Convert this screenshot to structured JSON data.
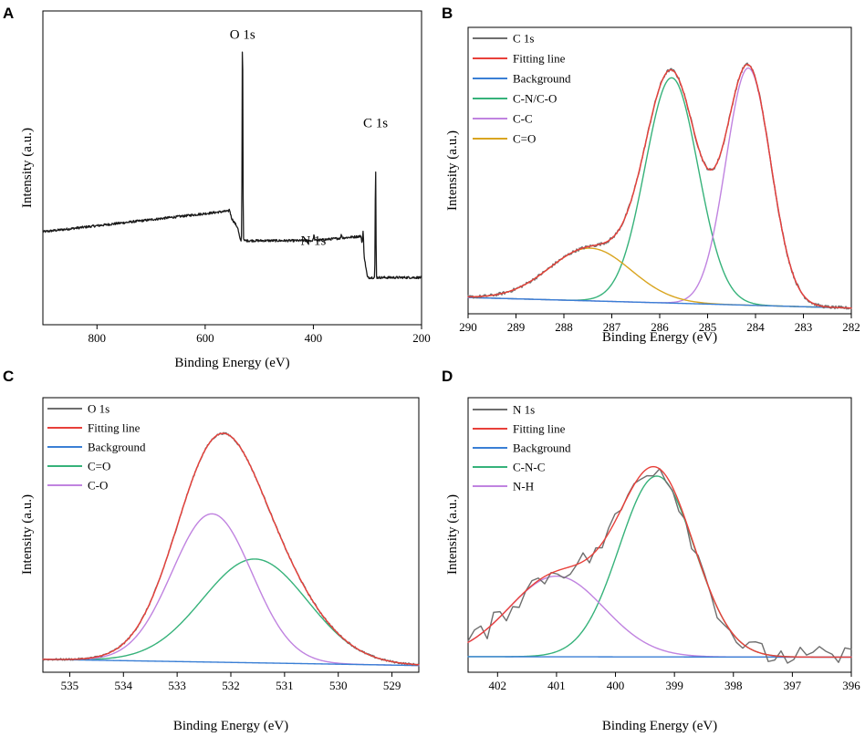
{
  "chart_data": [
    {
      "id": "A",
      "type": "line",
      "panel_label": "A",
      "xlabel": "Binding Energy (eV)",
      "ylabel": "Intensity (a.u.)",
      "xlim": [
        900,
        200
      ],
      "ylim": [
        0,
        1
      ],
      "xticks": [
        800,
        600,
        400,
        200
      ],
      "y_ticks_shown": false,
      "annotations": [
        {
          "text": "O 1s",
          "x": 531,
          "y": 0.97
        },
        {
          "text": "N 1s",
          "x": 400,
          "y": 0.27
        },
        {
          "text": "C 1s",
          "x": 285,
          "y": 0.67
        }
      ],
      "series": [
        {
          "name": "Survey",
          "color": "#1a1a1a",
          "baseline": [
            [
              900,
              0.315
            ],
            [
              560,
              0.385
            ],
            [
              540,
              0.33
            ],
            [
              535,
              0.285
            ],
            [
              400,
              0.285
            ],
            [
              312,
              0.3
            ],
            [
              300,
              0.16
            ],
            [
              200,
              0.16
            ]
          ],
          "noise": 0.004,
          "peaks": [
            {
              "center": 531,
              "height": 0.72,
              "width": 1.6
            },
            {
              "center": 555,
              "height": 0.018,
              "width": 4
            },
            {
              "center": 399,
              "height": 0.018,
              "width": 2
            },
            {
              "center": 348,
              "height": 0.012,
              "width": 2
            },
            {
              "center": 308,
              "height": 0.06,
              "width": 2
            },
            {
              "center": 285,
              "height": 0.38,
              "width": 1.5
            }
          ]
        }
      ]
    },
    {
      "id": "B",
      "type": "line",
      "panel_label": "B",
      "xlabel": "Binding Energy (eV)",
      "ylabel": "Intensity (a.u.)",
      "xlim": [
        290,
        282
      ],
      "ylim": [
        0,
        1
      ],
      "xticks": [
        290,
        289,
        288,
        287,
        286,
        285,
        284,
        283,
        282
      ],
      "y_ticks_shown": false,
      "legend_position": "top-left",
      "series": [
        {
          "name": "C 1s",
          "color": "#6e6e6e",
          "kind": "sum",
          "noise": 0.006
        },
        {
          "name": "Fitting line",
          "color": "#e8403a",
          "kind": "sum"
        },
        {
          "name": "Background",
          "color": "#3a7fd5",
          "kind": "background",
          "background": [
            0.04,
            0.0
          ]
        },
        {
          "name": "C-N/C-O",
          "color": "#36b27a",
          "kind": "gauss",
          "center": 285.75,
          "height": 0.855,
          "fwhm": 1.3
        },
        {
          "name": "C-C",
          "color": "#c083e0",
          "kind": "gauss",
          "center": 284.15,
          "height": 0.9,
          "fwhm": 1.1
        },
        {
          "name": "C=O",
          "color": "#d9a520",
          "kind": "gauss",
          "center": 287.45,
          "height": 0.2,
          "fwhm": 2.0
        }
      ]
    },
    {
      "id": "C",
      "type": "line",
      "panel_label": "C",
      "xlabel": "Binding Energy (eV)",
      "ylabel": "Intensity (a.u.)",
      "xlim": [
        535.5,
        528.5
      ],
      "ylim": [
        0,
        1
      ],
      "xticks": [
        535,
        534,
        533,
        532,
        531,
        530,
        529
      ],
      "y_ticks_shown": false,
      "legend_position": "top-left",
      "series": [
        {
          "name": "O 1s",
          "color": "#6e6e6e",
          "kind": "sum",
          "noise": 0.004
        },
        {
          "name": "Fitting line",
          "color": "#e8403a",
          "kind": "sum"
        },
        {
          "name": "Background",
          "color": "#3a7fd5",
          "kind": "background",
          "background": [
            0.03,
            0.005
          ]
        },
        {
          "name": "C=O",
          "color": "#36b27a",
          "kind": "gauss",
          "center": 531.55,
          "height": 0.42,
          "fwhm": 2.3
        },
        {
          "name": "C-O",
          "color": "#c083e0",
          "kind": "gauss",
          "center": 532.35,
          "height": 0.6,
          "fwhm": 1.75
        }
      ]
    },
    {
      "id": "D",
      "type": "line",
      "panel_label": "D",
      "xlabel": "Binding Energy (eV)",
      "ylabel": "Intensity (a.u.)",
      "xlim": [
        402.5,
        396
      ],
      "ylim": [
        0,
        1
      ],
      "xticks": [
        402,
        401,
        400,
        399,
        398,
        397,
        396
      ],
      "y_ticks_shown": false,
      "legend_position": "top-left",
      "series": [
        {
          "name": "N 1s",
          "color": "#6e6e6e",
          "kind": "sum",
          "noise": 0.045
        },
        {
          "name": "Fitting line",
          "color": "#e8403a",
          "kind": "sum"
        },
        {
          "name": "Background",
          "color": "#3a7fd5",
          "kind": "background",
          "background": [
            0.03,
            0.028
          ]
        },
        {
          "name": "C-N-C",
          "color": "#36b27a",
          "kind": "gauss",
          "center": 399.3,
          "height": 0.74,
          "fwhm": 1.5
        },
        {
          "name": "N-H",
          "color": "#c083e0",
          "kind": "gauss",
          "center": 401.0,
          "height": 0.33,
          "fwhm": 1.9
        }
      ]
    }
  ]
}
